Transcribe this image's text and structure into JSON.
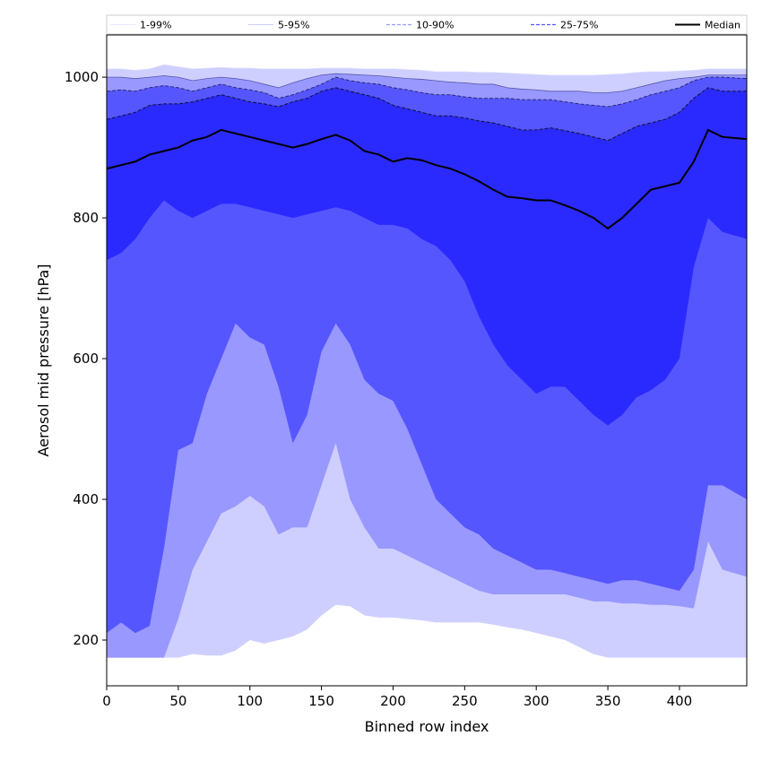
{
  "chart_data": {
    "type": "area",
    "xlabel": "Binned row index",
    "ylabel": "Aerosol mid pressure [hPa]",
    "xlim": [
      0,
      447
    ],
    "ylim": [
      135,
      1060
    ],
    "xticks": [
      0,
      50,
      100,
      150,
      200,
      250,
      300,
      350,
      400
    ],
    "yticks": [
      200,
      400,
      600,
      800,
      1000
    ],
    "grid": false,
    "legend_position": "top",
    "legend": [
      {
        "label": "1-99%",
        "style": "thin-solid",
        "color": "#e0e0ff"
      },
      {
        "label": "5-95%",
        "style": "thin-solid",
        "color": "#b8b8ff"
      },
      {
        "label": "10-90%",
        "style": "dashed",
        "color": "#9a9aff"
      },
      {
        "label": "25-75%",
        "style": "dashed",
        "color": "#5555ff"
      },
      {
        "label": "Median",
        "style": "thick-solid",
        "color": "#000000"
      }
    ],
    "band_colors": [
      "#cfcfff",
      "#9898ff",
      "#5656ff",
      "#2a2aff"
    ],
    "x": [
      0,
      10,
      20,
      30,
      40,
      50,
      60,
      70,
      80,
      90,
      100,
      110,
      120,
      130,
      140,
      150,
      160,
      170,
      180,
      190,
      200,
      210,
      220,
      230,
      240,
      250,
      260,
      270,
      280,
      290,
      300,
      310,
      320,
      330,
      340,
      350,
      360,
      370,
      380,
      390,
      400,
      410,
      420,
      430,
      447
    ],
    "series": [
      {
        "name": "1%",
        "values": [
          175,
          175,
          175,
          175,
          175,
          175,
          180,
          178,
          178,
          185,
          200,
          195,
          200,
          205,
          215,
          235,
          250,
          248,
          235,
          232,
          232,
          230,
          228,
          225,
          225,
          225,
          225,
          222,
          218,
          215,
          210,
          205,
          200,
          190,
          180,
          175,
          175,
          175,
          175,
          175,
          175,
          175,
          175,
          175,
          175
        ]
      },
      {
        "name": "5%",
        "values": [
          175,
          175,
          175,
          175,
          175,
          230,
          300,
          340,
          380,
          390,
          405,
          390,
          350,
          360,
          360,
          420,
          480,
          400,
          360,
          330,
          330,
          320,
          310,
          300,
          290,
          280,
          270,
          265,
          265,
          265,
          265,
          265,
          265,
          260,
          255,
          255,
          252,
          252,
          250,
          250,
          248,
          245,
          340,
          300,
          290
        ]
      },
      {
        "name": "10%",
        "values": [
          210,
          225,
          210,
          220,
          330,
          470,
          480,
          550,
          600,
          650,
          630,
          620,
          560,
          480,
          520,
          610,
          650,
          620,
          570,
          550,
          540,
          500,
          450,
          400,
          380,
          360,
          350,
          330,
          320,
          310,
          300,
          300,
          295,
          290,
          285,
          280,
          285,
          285,
          280,
          275,
          270,
          300,
          420,
          420,
          400
        ]
      },
      {
        "name": "25%",
        "values": [
          740,
          750,
          770,
          800,
          825,
          810,
          800,
          810,
          820,
          820,
          815,
          810,
          805,
          800,
          805,
          810,
          815,
          810,
          800,
          790,
          790,
          785,
          770,
          760,
          740,
          710,
          660,
          620,
          590,
          570,
          550,
          560,
          560,
          540,
          520,
          505,
          520,
          545,
          555,
          570,
          600,
          730,
          800,
          780,
          770
        ]
      },
      {
        "name": "Median",
        "values": [
          870,
          875,
          880,
          890,
          895,
          900,
          910,
          915,
          925,
          920,
          915,
          910,
          905,
          900,
          905,
          912,
          918,
          910,
          895,
          890,
          880,
          885,
          882,
          875,
          870,
          862,
          852,
          840,
          830,
          828,
          825,
          825,
          818,
          810,
          800,
          785,
          800,
          820,
          840,
          845,
          850,
          880,
          925,
          915,
          912
        ]
      },
      {
        "name": "75%",
        "values": [
          940,
          945,
          950,
          960,
          962,
          962,
          965,
          970,
          975,
          970,
          965,
          962,
          958,
          965,
          970,
          980,
          985,
          980,
          975,
          970,
          960,
          955,
          950,
          945,
          945,
          942,
          938,
          935,
          930,
          925,
          925,
          928,
          924,
          920,
          915,
          910,
          920,
          930,
          935,
          940,
          950,
          970,
          985,
          980,
          980
        ]
      },
      {
        "name": "90%",
        "values": [
          980,
          982,
          980,
          985,
          988,
          985,
          980,
          985,
          990,
          985,
          982,
          978,
          970,
          975,
          982,
          990,
          1000,
          995,
          992,
          990,
          985,
          982,
          978,
          975,
          975,
          972,
          970,
          970,
          970,
          968,
          968,
          968,
          965,
          962,
          960,
          958,
          962,
          968,
          975,
          980,
          985,
          995,
          1000,
          1000,
          998
        ]
      },
      {
        "name": "95%",
        "values": [
          1000,
          1000,
          998,
          1000,
          1002,
          1000,
          995,
          998,
          1000,
          998,
          995,
          990,
          985,
          992,
          998,
          1003,
          1005,
          1004,
          1003,
          1002,
          1000,
          998,
          997,
          995,
          993,
          992,
          990,
          990,
          985,
          983,
          982,
          980,
          980,
          980,
          978,
          978,
          980,
          985,
          990,
          995,
          998,
          1000,
          1003,
          1003,
          1003
        ]
      },
      {
        "name": "99%",
        "values": [
          1012,
          1012,
          1010,
          1012,
          1018,
          1015,
          1012,
          1013,
          1014,
          1013,
          1013,
          1012,
          1012,
          1012,
          1012,
          1013,
          1013,
          1013,
          1012,
          1012,
          1012,
          1011,
          1010,
          1008,
          1008,
          1008,
          1007,
          1007,
          1006,
          1005,
          1004,
          1003,
          1003,
          1003,
          1003,
          1004,
          1005,
          1007,
          1008,
          1008,
          1009,
          1010,
          1012,
          1012,
          1012
        ]
      }
    ]
  }
}
